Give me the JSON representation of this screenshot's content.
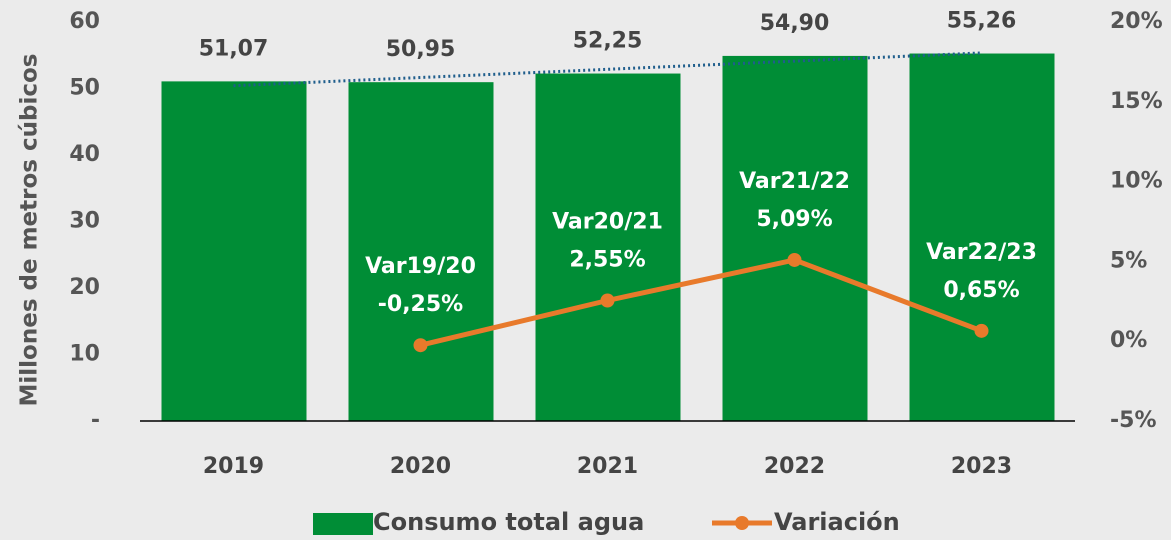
{
  "chart_data": {
    "type": "bar",
    "y_axis_label": "Millones de metros cúbicos",
    "categories": [
      "2019",
      "2020",
      "2021",
      "2022",
      "2023"
    ],
    "series": [
      {
        "name": "Consumo total agua",
        "color": "#008d36",
        "values": [
          51.07,
          50.95,
          52.25,
          54.9,
          55.26
        ],
        "value_labels": [
          "51,07",
          "50,95",
          "52,25",
          "54,90",
          "55,26"
        ],
        "trendline": true,
        "trendline_color": "#1f5e8c"
      },
      {
        "name": "Variación",
        "type": "line",
        "axis": "y2",
        "color": "#e87a2b",
        "values": [
          null,
          -0.25,
          2.55,
          5.09,
          0.65
        ],
        "point_labels": [
          null,
          "Var19/20",
          "Var20/21",
          "Var21/22",
          "Var22/23"
        ],
        "value_labels": [
          null,
          "-0,25%",
          "2,55%",
          "5,09%",
          "0,65%"
        ]
      }
    ],
    "ylim": [
      0,
      60
    ],
    "yticks": [
      {
        "value": 0,
        "label": "-"
      },
      10,
      20,
      30,
      40,
      50,
      60
    ],
    "y2lim": [
      -5,
      20
    ],
    "y2ticks": [
      {
        "value": -5,
        "label": "-5%"
      },
      {
        "value": 0,
        "label": "0%"
      },
      {
        "value": 5,
        "label": "5%"
      },
      {
        "value": 10,
        "label": "10%"
      },
      {
        "value": 15,
        "label": "15%"
      },
      {
        "value": 20,
        "label": "20%"
      }
    ],
    "legend": "bottom"
  }
}
